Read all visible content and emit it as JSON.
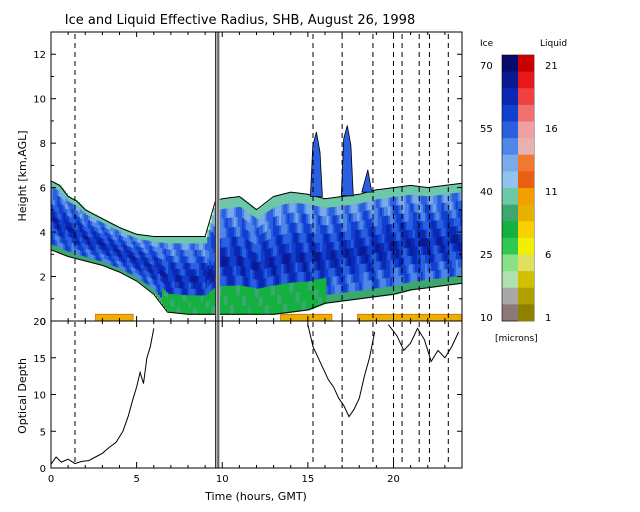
{
  "chart_data": [
    {
      "type": "heatmap",
      "title": "Ice and Liquid Effective Radius, SHB, August 26, 1998",
      "ylabel": "Height [km,AGL]",
      "xlim": [
        0,
        24
      ],
      "ylim": [
        0,
        13
      ],
      "y_ticks": [
        "0",
        "2",
        "4",
        "6",
        "8",
        "10",
        "12"
      ],
      "dashed_times": [
        1.4,
        15.3,
        17.0,
        18.8,
        20.0,
        20.5,
        21.5,
        22.1,
        23.2
      ],
      "missing_times": [
        9.6,
        9.7,
        9.8
      ],
      "ice_cloud_upper": [
        [
          0,
          6.3
        ],
        [
          0.5,
          6.1
        ],
        [
          1,
          5.6
        ],
        [
          1.5,
          5.4
        ],
        [
          2,
          5.0
        ],
        [
          2.5,
          4.8
        ],
        [
          3,
          4.6
        ],
        [
          3.5,
          4.4
        ],
        [
          4,
          4.2
        ],
        [
          5,
          3.9
        ],
        [
          6,
          3.8
        ],
        [
          7,
          3.8
        ],
        [
          8,
          3.8
        ],
        [
          9,
          3.8
        ],
        [
          9.6,
          5.4
        ],
        [
          10,
          5.5
        ],
        [
          11,
          5.6
        ],
        [
          12,
          5.0
        ],
        [
          13,
          5.6
        ],
        [
          14,
          5.8
        ],
        [
          15,
          5.7
        ],
        [
          16,
          5.5
        ],
        [
          17,
          5.6
        ],
        [
          18,
          5.7
        ],
        [
          19,
          5.9
        ],
        [
          20,
          6.0
        ],
        [
          21,
          6.1
        ],
        [
          22,
          6.0
        ],
        [
          23,
          6.1
        ],
        [
          24,
          6.2
        ]
      ],
      "ice_cloud_lower": [
        [
          0,
          3.2
        ],
        [
          1,
          2.9
        ],
        [
          2,
          2.7
        ],
        [
          3,
          2.5
        ],
        [
          4,
          2.2
        ],
        [
          5,
          1.8
        ],
        [
          6,
          1.2
        ],
        [
          6.8,
          0.4
        ],
        [
          8,
          0.3
        ],
        [
          10,
          0.3
        ],
        [
          12,
          0.3
        ],
        [
          13,
          0.3
        ],
        [
          14,
          0.4
        ],
        [
          15,
          0.5
        ],
        [
          16,
          0.8
        ],
        [
          17,
          0.9
        ],
        [
          18,
          1.0
        ],
        [
          19,
          1.1
        ],
        [
          20,
          1.2
        ],
        [
          21,
          1.4
        ],
        [
          22,
          1.5
        ],
        [
          23,
          1.6
        ],
        [
          24,
          1.7
        ]
      ],
      "liquid_layers": [
        [
          2.6,
          4.8
        ],
        [
          13.4,
          16.4
        ],
        [
          17.9,
          24
        ]
      ],
      "upper_cloud_tops": [
        [
          15.5,
          8.5
        ],
        [
          17.3,
          8.8
        ],
        [
          18.5,
          6.8
        ]
      ]
    },
    {
      "type": "line",
      "ylabel": "Optical Depth",
      "xlabel": "Time (hours, GMT)",
      "xlim": [
        0,
        24
      ],
      "ylim": [
        0,
        20
      ],
      "x_ticks": [
        "0",
        "5",
        "10",
        "15",
        "20"
      ],
      "y_ticks": [
        "0",
        "5",
        "10",
        "15",
        "20"
      ],
      "series": [
        {
          "x": [
            0,
            0.3,
            0.6,
            1,
            1.4,
            1.8,
            2.2,
            2.6,
            3,
            3.4,
            3.8,
            4.2,
            4.5,
            4.8,
            5.0,
            5.2,
            5.4,
            5.6,
            5.8,
            6.0
          ],
          "y": [
            0.5,
            1.5,
            0.8,
            1.2,
            0.6,
            0.9,
            1.0,
            1.5,
            2.0,
            2.8,
            3.5,
            5.0,
            7.0,
            9.5,
            11.0,
            13.0,
            11.5,
            15.0,
            16.5,
            19.0
          ]
        },
        {
          "x": [
            15.0,
            15.3,
            15.6,
            15.9,
            16.2,
            16.5,
            16.8,
            17.1,
            17.4,
            17.7,
            18.0,
            18.3,
            18.6,
            18.9
          ],
          "y": [
            19.5,
            16.5,
            15.0,
            13.5,
            12.0,
            11.0,
            9.5,
            8.5,
            7.0,
            8.0,
            9.5,
            12.5,
            15.0,
            18.5
          ]
        },
        {
          "x": [
            19.7,
            20.2,
            20.6,
            21.0,
            21.4,
            21.8,
            22.2,
            22.6,
            23.0,
            23.4,
            23.8
          ],
          "y": [
            19.5,
            18.0,
            16.0,
            17.0,
            19.0,
            17.5,
            14.5,
            16.0,
            15.0,
            16.5,
            18.5
          ]
        }
      ]
    }
  ],
  "colorbar": {
    "ice_label": "Ice",
    "liquid_label": "Liquid",
    "unit_label": "[microns]",
    "ice_ticks": [
      "70",
      "55",
      "40",
      "25",
      "10"
    ],
    "liquid_ticks": [
      "21",
      "16",
      "11",
      "6",
      "1"
    ],
    "ice_colors": [
      "#0a0a6e",
      "#0a1a90",
      "#0a28b4",
      "#1040d0",
      "#2a60e0",
      "#4f86e8",
      "#7aaae8",
      "#90c4ee",
      "#6cc8a8",
      "#3ca870",
      "#14b040",
      "#30c850",
      "#88e088",
      "#b0e0b0",
      "#a8a8a8",
      "#8c7878"
    ],
    "liquid_colors": [
      "#c80000",
      "#e81818",
      "#f04040",
      "#f07070",
      "#f0a0a0",
      "#e8b0b0",
      "#f07830",
      "#e86010",
      "#f0a000",
      "#e8b000",
      "#f8d000",
      "#f0f000",
      "#e0e060",
      "#d0c000",
      "#b0a000",
      "#908000"
    ]
  }
}
